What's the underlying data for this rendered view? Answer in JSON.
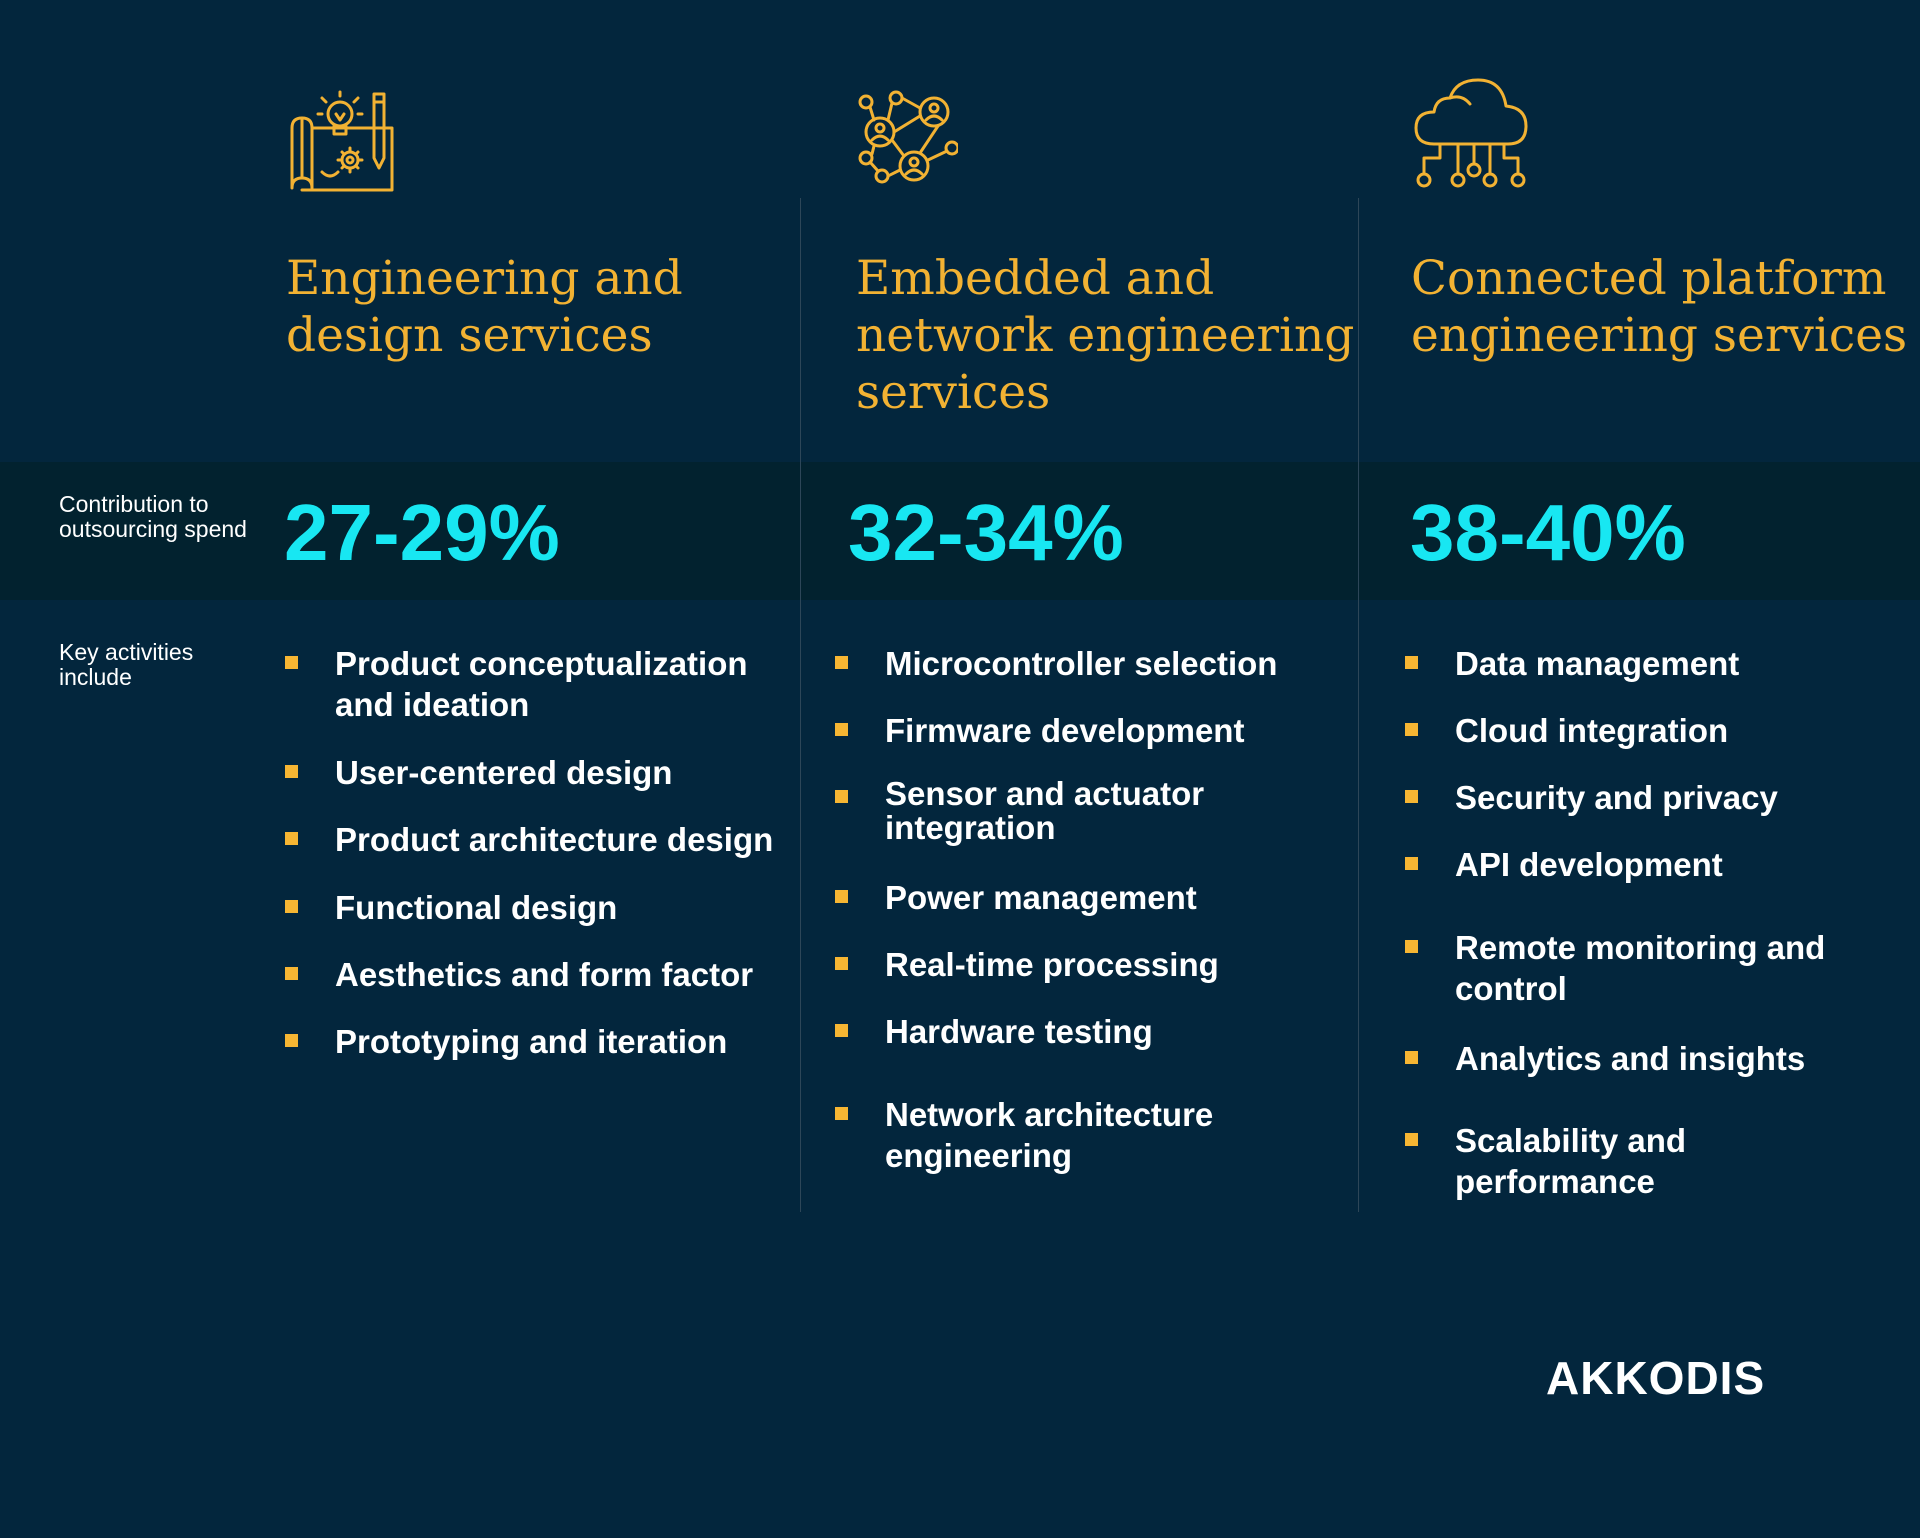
{
  "row_labels": {
    "contribution": "Contribution to outsourcing spend",
    "activities": "Key activities include"
  },
  "columns": [
    {
      "icon": "blueprint-lightbulb-gear-pencil-icon",
      "title_lines": [
        "Engineering and",
        "design services"
      ],
      "contribution": "27-29%",
      "activities": [
        "Product conceptualization|and ideation",
        "User-centered design",
        "Product architecture design",
        "Functional design",
        "Aesthetics and form factor",
        "Prototyping and iteration"
      ]
    },
    {
      "icon": "network-people-icon",
      "title_lines": [
        "Embedded and",
        "network engineering",
        "services"
      ],
      "contribution": "32-34%",
      "activities": [
        "Microcontroller selection",
        "Firmware development",
        "Sensor and actuator|integration",
        "Power management",
        "Real-time processing",
        "Hardware testing",
        "Network architecture|engineering"
      ]
    },
    {
      "icon": "cloud-circuit-icon",
      "title_lines": [
        "Connected platform",
        "engineering services"
      ],
      "contribution": "38-40%",
      "activities": [
        "Data management",
        "Cloud integration",
        "Security and privacy",
        "API development",
        "Remote monitoring and|control",
        "Analytics and insights",
        "Scalability and|performance"
      ]
    }
  ],
  "logo_text": "AKKODIS",
  "colors": {
    "background": "#03263d",
    "band": "#02222f",
    "title": "#f2b233",
    "percentage": "#18e7f2",
    "bullet": "#f7b633",
    "text": "#ffffff"
  }
}
